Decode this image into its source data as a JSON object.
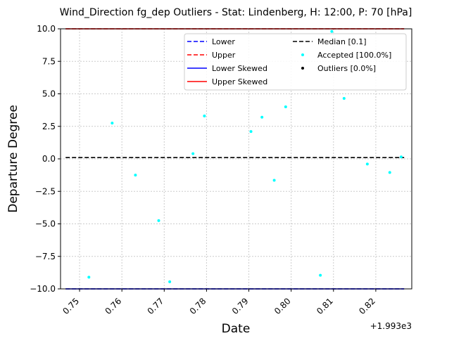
{
  "chart_data": {
    "type": "scatter",
    "title": "Wind_Direction fg_dep Outliers - Stat: Lindenberg, H: 12:00, P: 70 [hPa]",
    "xlabel": "Date",
    "ylabel": "Departure Degree",
    "x_offset_label": "+1.993e3",
    "xlim": [
      0.7455,
      0.8285
    ],
    "ylim": [
      -10,
      10
    ],
    "x_ticks": [
      0.75,
      0.76,
      0.77,
      0.78,
      0.79,
      0.8,
      0.81,
      0.82
    ],
    "x_tick_labels": [
      "0.75",
      "0.76",
      "0.77",
      "0.78",
      "0.79",
      "0.80",
      "0.81",
      "0.82"
    ],
    "y_ticks": [
      -10,
      -7.5,
      -5,
      -2.5,
      0,
      2.5,
      5,
      7.5,
      10
    ],
    "y_tick_labels": [
      "−10.0",
      "−7.5",
      "−5.0",
      "−2.5",
      "0.0",
      "2.5",
      "5.0",
      "7.5",
      "10.0"
    ],
    "grid": true,
    "legend_position": "top-right",
    "lines": [
      {
        "name": "Lower",
        "value": -10,
        "color": "#0000ff",
        "style": "dashed"
      },
      {
        "name": "Upper",
        "value": 10,
        "color": "#ff0000",
        "style": "dashed"
      },
      {
        "name": "Lower Skewed",
        "value": -10,
        "color": "#0000ff",
        "style": "solid"
      },
      {
        "name": "Upper Skewed",
        "value": 10,
        "color": "#ff0000",
        "style": "solid"
      },
      {
        "name": "Median [0.1]",
        "value": 0.1,
        "color": "#000000",
        "style": "dashed"
      }
    ],
    "line_x_range": [
      0.7467,
      0.8267
    ],
    "series": [
      {
        "name": "Accepted [100.0%]",
        "color": "#00ffff",
        "points": [
          {
            "x": 0.7522,
            "y": -9.1
          },
          {
            "x": 0.7577,
            "y": 2.75
          },
          {
            "x": 0.7632,
            "y": -1.25
          },
          {
            "x": 0.7687,
            "y": -4.75
          },
          {
            "x": 0.7713,
            "y": -9.45
          },
          {
            "x": 0.7768,
            "y": 0.4
          },
          {
            "x": 0.7795,
            "y": 3.3
          },
          {
            "x": 0.7905,
            "y": 2.1
          },
          {
            "x": 0.7931,
            "y": 3.2
          },
          {
            "x": 0.796,
            "y": -1.65
          },
          {
            "x": 0.7987,
            "y": 4.0
          },
          {
            "x": 0.8069,
            "y": -8.95
          },
          {
            "x": 0.8096,
            "y": 9.8
          },
          {
            "x": 0.8125,
            "y": 4.65
          },
          {
            "x": 0.818,
            "y": -0.4
          },
          {
            "x": 0.8233,
            "y": -1.05
          },
          {
            "x": 0.826,
            "y": 0.15
          }
        ]
      },
      {
        "name": "Outliers [0.0%]",
        "color": "#000000",
        "points": []
      }
    ]
  }
}
